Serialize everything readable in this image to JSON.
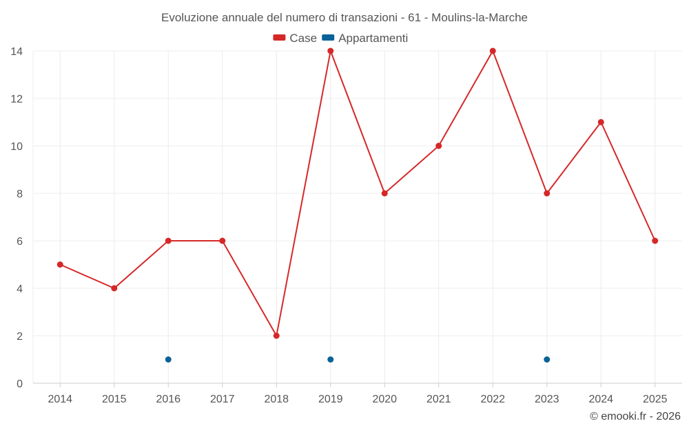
{
  "chart_data": {
    "type": "line",
    "title": "Evoluzione annuale del numero di transazioni - 61 - Moulins-la-Marche",
    "categories": [
      "2014",
      "2015",
      "2016",
      "2017",
      "2018",
      "2019",
      "2020",
      "2021",
      "2022",
      "2023",
      "2024",
      "2025"
    ],
    "series": [
      {
        "name": "Case",
        "color": "#d62728",
        "values": [
          5,
          4,
          6,
          6,
          2,
          14,
          8,
          10,
          14,
          8,
          11,
          6
        ],
        "line": true
      },
      {
        "name": "Appartamenti",
        "color": "#0a6299",
        "values": [
          null,
          null,
          1,
          null,
          null,
          1,
          null,
          null,
          null,
          1,
          null,
          null
        ],
        "line": false
      }
    ],
    "ylim": [
      0,
      14
    ],
    "yticks": [
      0,
      2,
      4,
      6,
      8,
      10,
      12,
      14
    ],
    "grid": true,
    "legend_position": "top-center",
    "credit": "© emooki.fr - 2026"
  }
}
